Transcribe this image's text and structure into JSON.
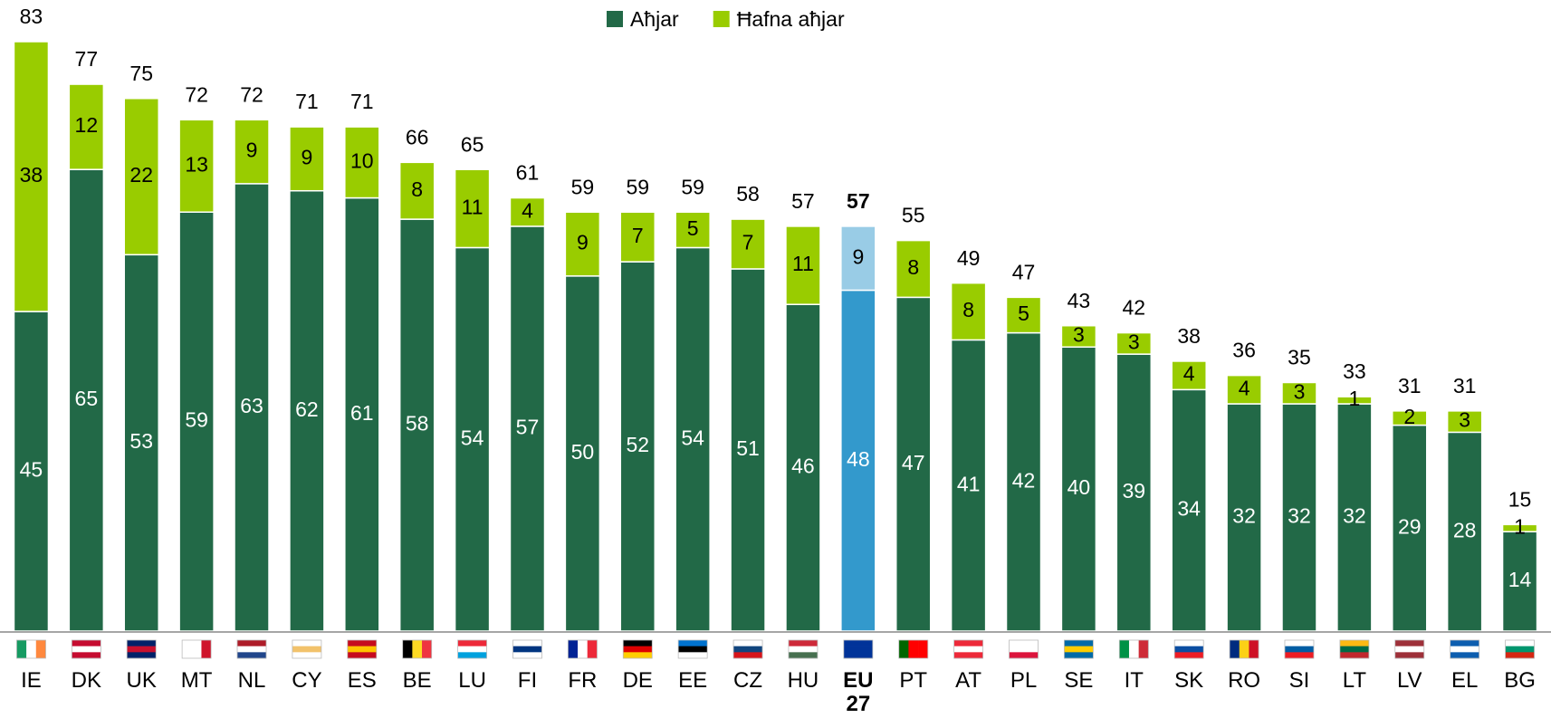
{
  "chart_data": {
    "type": "stacked_bar",
    "categories": [
      "IE",
      "DK",
      "UK",
      "MT",
      "NL",
      "CY",
      "ES",
      "BE",
      "LU",
      "FI",
      "FR",
      "DE",
      "EE",
      "CZ",
      "HU",
      "EU 27",
      "PT",
      "AT",
      "PL",
      "SE",
      "IT",
      "SK",
      "RO",
      "SI",
      "LT",
      "LV",
      "EL",
      "BG"
    ],
    "series": [
      {
        "name": "Aħjar",
        "color": "#226947",
        "values": [
          45,
          65,
          53,
          59,
          63,
          62,
          61,
          58,
          54,
          57,
          50,
          52,
          54,
          51,
          46,
          48,
          47,
          41,
          42,
          40,
          39,
          34,
          32,
          32,
          32,
          29,
          28,
          14
        ]
      },
      {
        "name": "Ħafna aħjar",
        "color": "#99cc00",
        "values": [
          38,
          12,
          22,
          13,
          9,
          9,
          10,
          8,
          11,
          4,
          9,
          7,
          5,
          7,
          11,
          9,
          8,
          8,
          5,
          3,
          3,
          4,
          4,
          3,
          1,
          2,
          3,
          1
        ]
      }
    ],
    "totals": [
      83,
      77,
      75,
      72,
      72,
      71,
      71,
      66,
      65,
      61,
      59,
      59,
      59,
      58,
      57,
      57,
      55,
      49,
      47,
      43,
      42,
      38,
      36,
      35,
      33,
      31,
      31,
      15
    ],
    "highlight_category": "EU 27",
    "highlight_colors": [
      "#3399cc",
      "#99cce6"
    ],
    "ylim": [
      0,
      83
    ],
    "legend": "top"
  }
}
